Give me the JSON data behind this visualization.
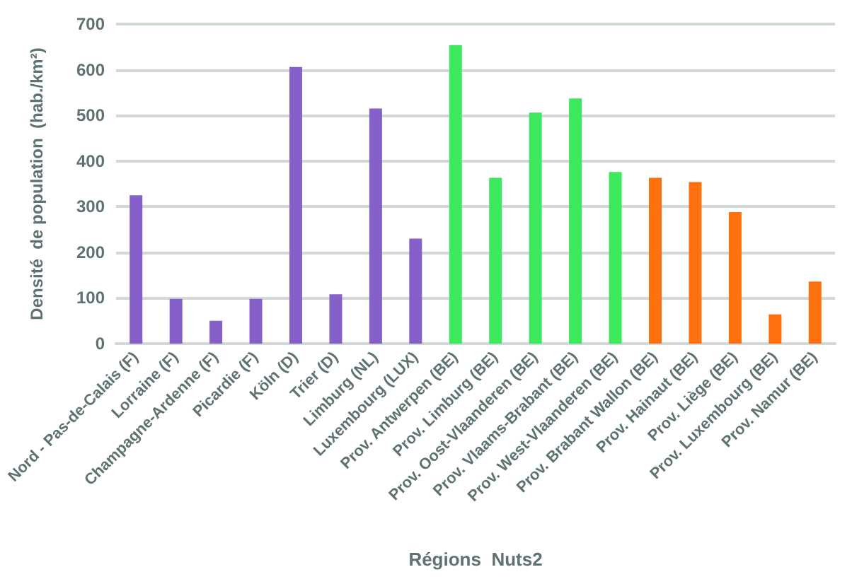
{
  "chart_data": {
    "type": "bar",
    "xlabel": "Régions  Nuts2",
    "ylabel": "Densité  de population  (hab./km²)",
    "categories": [
      "Nord - Pas-de-Calais (F)",
      "Lorraine (F)",
      "Champagne-Ardenne (F)",
      "Picardie (F)",
      "Köln (D)",
      "Trier (D)",
      "Limburg (NL)",
      "Luxembourg (LUX)",
      "Prov. Antwerpen (BE)",
      "Prov. Limburg (BE)",
      "Prov. Oost-Vlaanderen (BE)",
      "Prov. Vlaams-Brabant (BE)",
      "Prov. West-Vlaanderen (BE)",
      "Prov. Brabant Wallon (BE)",
      "Prov. Hainaut (BE)",
      "Prov. Liège (BE)",
      "Prov. Luxembourg (BE)",
      "Prov. Namur (BE)"
    ],
    "values": [
      325,
      98,
      50,
      98,
      606,
      108,
      515,
      230,
      654,
      363,
      506,
      537,
      376,
      363,
      354,
      288,
      64,
      136
    ],
    "colors": [
      "#8560c9",
      "#8560c9",
      "#8560c9",
      "#8560c9",
      "#8560c9",
      "#8560c9",
      "#8560c9",
      "#8560c9",
      "#3ce95c",
      "#3ce95c",
      "#3ce95c",
      "#3ce95c",
      "#3ce95c",
      "#ff700f",
      "#ff700f",
      "#ff700f",
      "#ff700f",
      "#ff700f"
    ],
    "ylim": [
      0,
      700
    ],
    "yticks": [
      0,
      100,
      200,
      300,
      400,
      500,
      600,
      700
    ],
    "grid": "y"
  }
}
